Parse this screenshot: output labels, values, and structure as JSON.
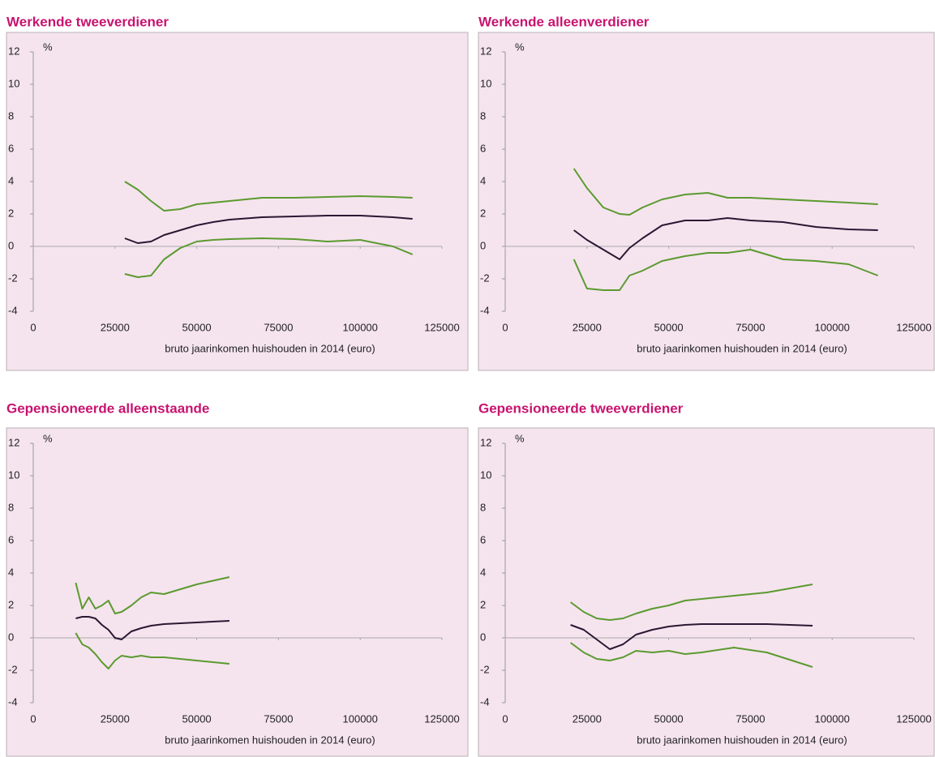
{
  "chart_data": [
    {
      "type": "line",
      "title": "Werkende tweeverdiener",
      "y_unit": "%",
      "xlabel": "bruto jaarinkomen huishouden in 2014 (euro)",
      "xlim": [
        0,
        125000
      ],
      "ylim": [
        -4,
        12
      ],
      "xticks": [
        0,
        25000,
        50000,
        75000,
        100000,
        125000
      ],
      "yticks": [
        -4,
        -2,
        0,
        2,
        4,
        6,
        8,
        10,
        12
      ],
      "x": [
        28000,
        32000,
        36000,
        40000,
        45000,
        50000,
        55000,
        60000,
        70000,
        80000,
        90000,
        100000,
        110000,
        116000
      ],
      "series": [
        {
          "color": "#5b9a2f",
          "values": [
            4.0,
            3.5,
            2.8,
            2.2,
            2.3,
            2.6,
            2.7,
            2.8,
            3.0,
            3.0,
            3.05,
            3.1,
            3.05,
            3.0
          ]
        },
        {
          "color": "#2a1833",
          "values": [
            0.5,
            0.2,
            0.3,
            0.7,
            1.0,
            1.3,
            1.5,
            1.65,
            1.8,
            1.85,
            1.9,
            1.9,
            1.8,
            1.7
          ]
        },
        {
          "color": "#5b9a2f",
          "values": [
            -1.7,
            -1.9,
            -1.8,
            -0.8,
            -0.1,
            0.3,
            0.4,
            0.45,
            0.5,
            0.45,
            0.3,
            0.4,
            0.0,
            -0.5
          ]
        }
      ]
    },
    {
      "type": "line",
      "title": "Werkende alleenverdiener",
      "y_unit": "%",
      "xlabel": "bruto jaarinkomen huishouden in 2014 (euro)",
      "xlim": [
        0,
        125000
      ],
      "ylim": [
        -4,
        12
      ],
      "xticks": [
        0,
        25000,
        50000,
        75000,
        100000,
        125000
      ],
      "yticks": [
        -4,
        -2,
        0,
        2,
        4,
        6,
        8,
        10,
        12
      ],
      "x": [
        21000,
        25000,
        30000,
        35000,
        38000,
        42000,
        48000,
        55000,
        62000,
        68000,
        75000,
        85000,
        95000,
        105000,
        114000
      ],
      "series": [
        {
          "color": "#5b9a2f",
          "values": [
            4.8,
            3.6,
            2.4,
            2.0,
            1.95,
            2.4,
            2.9,
            3.2,
            3.3,
            3.0,
            3.0,
            2.9,
            2.8,
            2.7,
            2.6
          ]
        },
        {
          "color": "#2a1833",
          "values": [
            1.0,
            0.4,
            -0.2,
            -0.8,
            -0.1,
            0.5,
            1.3,
            1.6,
            1.6,
            1.75,
            1.6,
            1.5,
            1.2,
            1.05,
            1.0
          ]
        },
        {
          "color": "#5b9a2f",
          "values": [
            -0.8,
            -2.6,
            -2.7,
            -2.7,
            -1.8,
            -1.5,
            -0.9,
            -0.6,
            -0.4,
            -0.4,
            -0.2,
            -0.8,
            -0.9,
            -1.1,
            -1.8
          ]
        }
      ]
    },
    {
      "type": "line",
      "title": "Gepensioneerde alleenstaande",
      "y_unit": "%",
      "xlabel": "bruto jaarinkomen huishouden in 2014 (euro)",
      "xlim": [
        0,
        125000
      ],
      "ylim": [
        -4,
        12
      ],
      "xticks": [
        0,
        25000,
        50000,
        75000,
        100000,
        125000
      ],
      "yticks": [
        -4,
        -2,
        0,
        2,
        4,
        6,
        8,
        10,
        12
      ],
      "x": [
        13000,
        15000,
        17000,
        19000,
        21000,
        23000,
        25000,
        27000,
        30000,
        33000,
        36000,
        40000,
        50000,
        60000
      ],
      "series": [
        {
          "color": "#5b9a2f",
          "values": [
            3.4,
            1.8,
            2.5,
            1.8,
            2.0,
            2.3,
            1.5,
            1.6,
            2.0,
            2.5,
            2.8,
            2.7,
            3.3,
            3.75
          ]
        },
        {
          "color": "#2a1833",
          "values": [
            1.2,
            1.3,
            1.3,
            1.2,
            0.8,
            0.5,
            0.0,
            -0.1,
            0.4,
            0.6,
            0.75,
            0.85,
            0.95,
            1.05
          ]
        },
        {
          "color": "#5b9a2f",
          "values": [
            0.3,
            -0.4,
            -0.6,
            -1.0,
            -1.5,
            -1.9,
            -1.4,
            -1.1,
            -1.2,
            -1.1,
            -1.2,
            -1.2,
            -1.4,
            -1.6
          ]
        }
      ]
    },
    {
      "type": "line",
      "title": "Gepensioneerde tweeverdiener",
      "y_unit": "%",
      "xlabel": "bruto jaarinkomen huishouden in 2014 (euro)",
      "xlim": [
        0,
        125000
      ],
      "ylim": [
        -4,
        12
      ],
      "xticks": [
        0,
        25000,
        50000,
        75000,
        100000,
        125000
      ],
      "yticks": [
        -4,
        -2,
        0,
        2,
        4,
        6,
        8,
        10,
        12
      ],
      "x": [
        20000,
        24000,
        28000,
        32000,
        36000,
        40000,
        45000,
        50000,
        55000,
        60000,
        70000,
        80000,
        94000
      ],
      "series": [
        {
          "color": "#5b9a2f",
          "values": [
            2.2,
            1.6,
            1.2,
            1.1,
            1.2,
            1.5,
            1.8,
            2.0,
            2.3,
            2.4,
            2.6,
            2.8,
            3.3
          ]
        },
        {
          "color": "#2a1833",
          "values": [
            0.8,
            0.5,
            -0.1,
            -0.7,
            -0.4,
            0.2,
            0.5,
            0.7,
            0.8,
            0.85,
            0.85,
            0.85,
            0.75
          ]
        },
        {
          "color": "#5b9a2f",
          "values": [
            -0.3,
            -0.9,
            -1.3,
            -1.4,
            -1.2,
            -0.8,
            -0.9,
            -0.8,
            -1.0,
            -0.9,
            -0.6,
            -0.9,
            -1.8
          ]
        }
      ]
    }
  ]
}
